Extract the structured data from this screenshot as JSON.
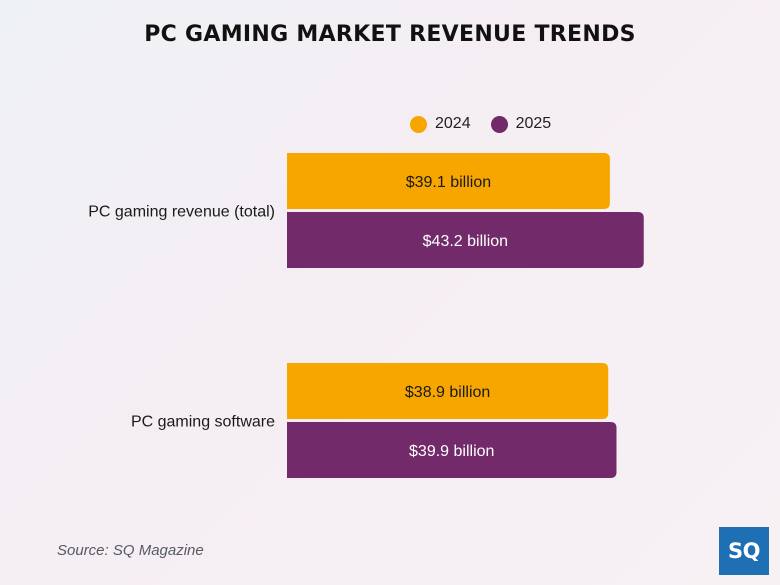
{
  "colors": {
    "series_2024": "#f7a600",
    "series_2025": "#722a6b",
    "title_text": "#111111",
    "logo_bg": "#1e6fb3"
  },
  "chart_data": {
    "type": "bar",
    "orientation": "horizontal",
    "title": "PC GAMING MARKET REVENUE TRENDS",
    "categories": [
      "PC gaming revenue (total)",
      "PC gaming software"
    ],
    "series": [
      {
        "name": "2024",
        "values": [
          39.1,
          38.9
        ],
        "labels": [
          "$39.1 billion",
          "$38.9 billion"
        ]
      },
      {
        "name": "2025",
        "values": [
          43.2,
          39.9
        ],
        "labels": [
          "$43.2 billion",
          "$39.9 billion"
        ]
      }
    ],
    "unit": "billion USD",
    "legend_position": "top",
    "grid": false,
    "axes_visible": false
  },
  "footer": {
    "source": "Source: SQ Magazine",
    "logo_text": "SQ"
  }
}
